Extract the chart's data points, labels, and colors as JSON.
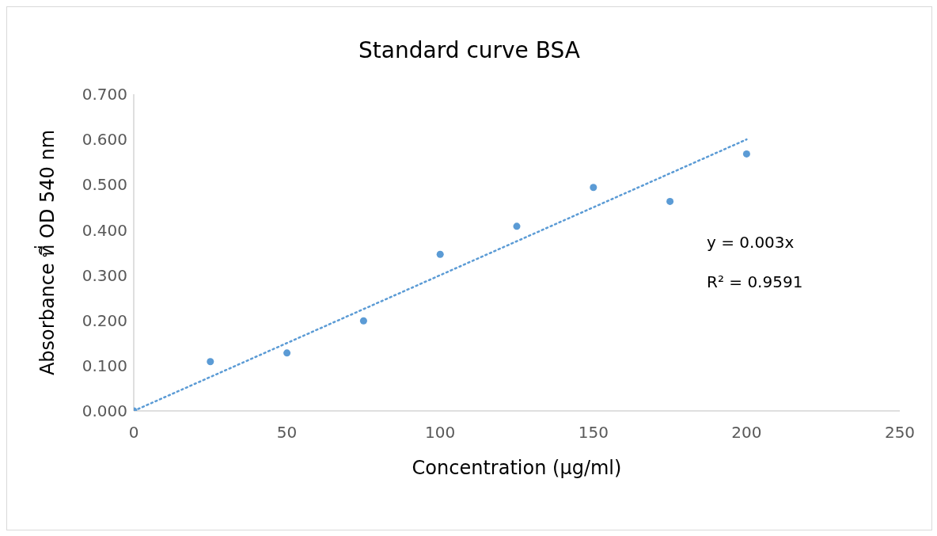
{
  "chart_data": {
    "type": "scatter",
    "title": "Standard curve BSA",
    "xlabel": "Concentration (µg/ml)",
    "ylabel": "Absorbance ที่ OD 540 nm",
    "series": [
      {
        "type": "line",
        "color": "#5b9bd5",
        "x": [
          0,
          200
        ],
        "values": [
          0,
          0.6
        ],
        "line_style": "dotted",
        "marker": "none"
      },
      {
        "color": "#5b9bd5",
        "x": [
          0,
          25,
          50,
          75,
          100,
          125,
          150,
          175,
          200
        ],
        "values": [
          0,
          0.109,
          0.128,
          0.199,
          0.346,
          0.408,
          0.494,
          0.463,
          0.568
        ],
        "marker": "circle"
      }
    ],
    "annotations": [
      "y = 0.003x",
      "R² = 0.9591"
    ],
    "xlim": [
      0,
      250
    ],
    "xticks": [
      0,
      50,
      100,
      150,
      200,
      250
    ],
    "ylim": [
      0,
      0.7
    ],
    "yticks": [
      {
        "value": 0,
        "label": "0.000"
      },
      {
        "value": 0.1,
        "label": "0.100"
      },
      {
        "value": 0.2,
        "label": "0.200"
      },
      {
        "value": 0.3,
        "label": "0.300"
      },
      {
        "value": 0.4,
        "label": "0.400"
      },
      {
        "value": 0.5,
        "label": "0.500"
      },
      {
        "value": 0.6,
        "label": "0.600"
      },
      {
        "value": 0.7,
        "label": "0.700"
      }
    ],
    "grid": false
  }
}
